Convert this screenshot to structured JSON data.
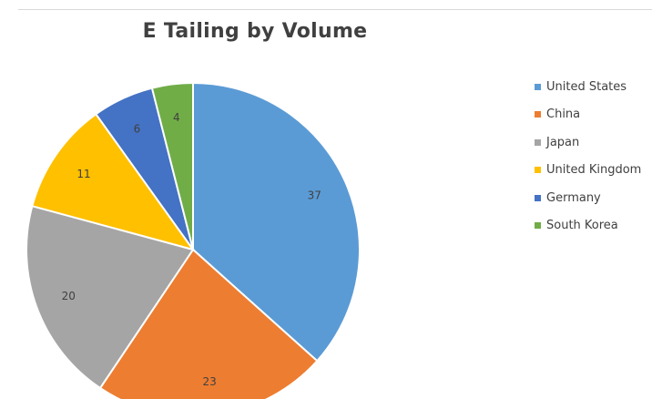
{
  "chart_data": {
    "type": "pie",
    "title": "E Tailing by Volume",
    "categories": [
      "United States",
      "China",
      "Japan",
      "United Kingdom",
      "Germany",
      "South Korea"
    ],
    "values": [
      37,
      23,
      20,
      11,
      6,
      4
    ],
    "colors": [
      "#5b9bd5",
      "#ed7d31",
      "#a5a5a5",
      "#ffc000",
      "#4472c4",
      "#70ad47"
    ],
    "data_labels": [
      "37",
      "23",
      "20",
      "11",
      "6",
      "4"
    ],
    "legend_position": "right",
    "start_angle": "top, clockwise"
  }
}
